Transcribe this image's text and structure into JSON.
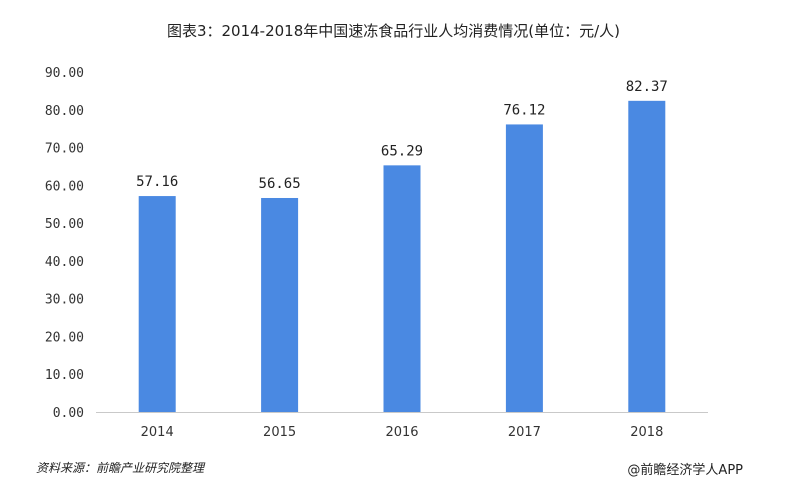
{
  "title": "图表3：2014-2018年中国速冻食品行业人均消费情况(单位：元/人)",
  "source": "资料来源：前瞻产业研究院整理",
  "brand": "@前瞻经济学人APP",
  "colors": {
    "bar": "#4a89e2",
    "axis": "#c9c9c9"
  },
  "chart_data": {
    "type": "bar",
    "title": "图表3：2014-2018年中国速冻食品行业人均消费情况(单位：元/人)",
    "categories": [
      "2014",
      "2015",
      "2016",
      "2017",
      "2018"
    ],
    "values": [
      57.16,
      56.65,
      65.29,
      76.12,
      82.37
    ],
    "value_labels": [
      "57.16",
      "56.65",
      "65.29",
      "76.12",
      "82.37"
    ],
    "ylim": [
      0,
      90
    ],
    "yticks": [
      "0.00",
      "10.00",
      "20.00",
      "30.00",
      "40.00",
      "50.00",
      "60.00",
      "70.00",
      "80.00",
      "90.00"
    ],
    "xlabel": "",
    "ylabel": "",
    "grid": false,
    "legend": "none"
  }
}
